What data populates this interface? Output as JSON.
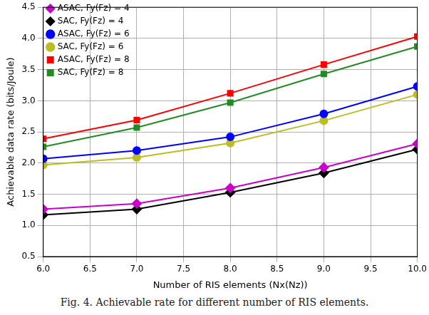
{
  "chart_data": {
    "type": "line",
    "caption": "Fig. 4. Achievable rate for different number of RIS elements.",
    "x_label": "Number of RIS elements (Nx(Nz))",
    "y_label": "Achievable data rate (bits/Joule)",
    "x": [
      6,
      7,
      8,
      9,
      10
    ],
    "series": [
      {
        "name": "ASAC, Fy(Fz) = 4",
        "color": "#cc00cc",
        "marker": "diamond",
        "values": [
          1.26,
          1.35,
          1.6,
          1.93,
          2.31
        ]
      },
      {
        "name": "SAC, Fy(Fz) = 4",
        "color": "#000000",
        "marker": "diamond",
        "values": [
          1.17,
          1.26,
          1.53,
          1.84,
          2.22
        ]
      },
      {
        "name": "ASAC, Fy(Fz) = 6",
        "color": "#0000ff",
        "marker": "circle",
        "values": [
          2.07,
          2.2,
          2.42,
          2.79,
          3.23
        ]
      },
      {
        "name": "SAC, Fy(Fz) = 6",
        "color": "#bcbd22",
        "marker": "circle",
        "values": [
          1.97,
          2.09,
          2.32,
          2.68,
          3.1
        ]
      },
      {
        "name": "ASAC, Fy(Fz) = 8",
        "color": "#ff0000",
        "marker": "square",
        "values": [
          2.39,
          2.69,
          3.12,
          3.58,
          4.03
        ]
      },
      {
        "name": "SAC, Fy(Fz) = 8",
        "color": "#228b22",
        "marker": "square",
        "values": [
          2.26,
          2.57,
          2.97,
          3.43,
          3.87
        ]
      }
    ],
    "xlim": [
      6,
      10
    ],
    "xticks": [
      {
        "value": 6,
        "label": "6.0"
      },
      6.5,
      {
        "value": 7,
        "label": "7.0"
      },
      7.5,
      {
        "value": 8,
        "label": "8.0"
      },
      8.5,
      {
        "value": 9,
        "label": "9.0"
      },
      9.5,
      {
        "value": 10,
        "label": "10.0"
      }
    ],
    "ylim": [
      0.5,
      4.5
    ],
    "yticks": [
      0.5,
      {
        "value": 1,
        "label": "1.0"
      },
      1.5,
      {
        "value": 2,
        "label": "2.0"
      },
      2.5,
      {
        "value": 3,
        "label": "3.0"
      },
      3.5,
      {
        "value": 4,
        "label": "4.0"
      },
      4.5
    ],
    "grid": true,
    "legend": "upper left"
  }
}
